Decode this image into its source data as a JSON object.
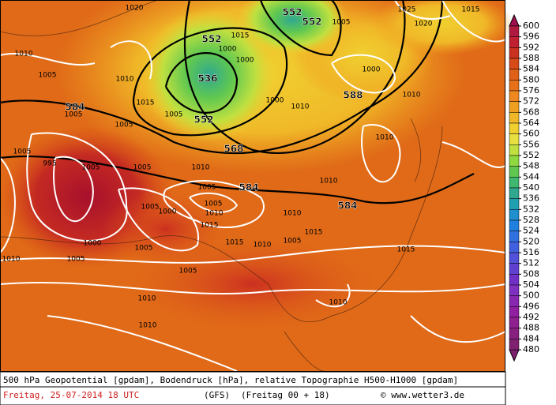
{
  "map": {
    "height_labels": [
      "552",
      "552",
      "552",
      "536",
      "552",
      "584",
      "588",
      "568",
      "584",
      "584"
    ],
    "pressure_labels": [
      "1020",
      "1025",
      "1015",
      "1020",
      "1005",
      "1000",
      "1015",
      "1010",
      "1005",
      "1010",
      "1000",
      "1015",
      "1000",
      "1010",
      "1005",
      "1000",
      "1010",
      "1005",
      "1005",
      "995",
      "1005",
      "1005",
      "1005",
      "1010",
      "1005",
      "1000",
      "1005",
      "1005",
      "1010",
      "1010",
      "1015",
      "1015",
      "1010",
      "1015",
      "1005",
      "1000",
      "1005",
      "1010",
      "1010",
      "1005",
      "1010",
      "1010",
      "1005",
      "1010",
      "1010",
      "1015"
    ]
  },
  "legend": {
    "values": [
      600,
      596,
      592,
      588,
      584,
      580,
      576,
      572,
      568,
      564,
      560,
      556,
      552,
      548,
      544,
      540,
      536,
      532,
      528,
      524,
      520,
      516,
      512,
      508,
      504,
      500,
      496,
      492,
      488,
      484,
      480
    ],
    "colors": [
      "#a0104f",
      "#b01a40",
      "#c02030",
      "#cc3020",
      "#d84a18",
      "#e06018",
      "#e87018",
      "#f08820",
      "#f0a020",
      "#f0b828",
      "#f0d030",
      "#e8e040",
      "#c0e040",
      "#90d840",
      "#60c850",
      "#40b870",
      "#30a890",
      "#20a0b0",
      "#2090d0",
      "#2080e0",
      "#3070e0",
      "#4060e0",
      "#5050d8",
      "#6040d0",
      "#7030c8",
      "#8030c0",
      "#8828b0",
      "#9020a0",
      "#902090",
      "#882080",
      "#802070"
    ]
  },
  "footer": {
    "description": "500 hPa Geopotential [gpdam], Bodendruck [hPa], relative Topographie H500-H1000 [gpdam]",
    "date": "Freitag, 25-07-2014  18 UTC",
    "model": "(GFS)",
    "run": "(Freitag 00 + 18)",
    "credit": "© www.wetter3.de"
  }
}
